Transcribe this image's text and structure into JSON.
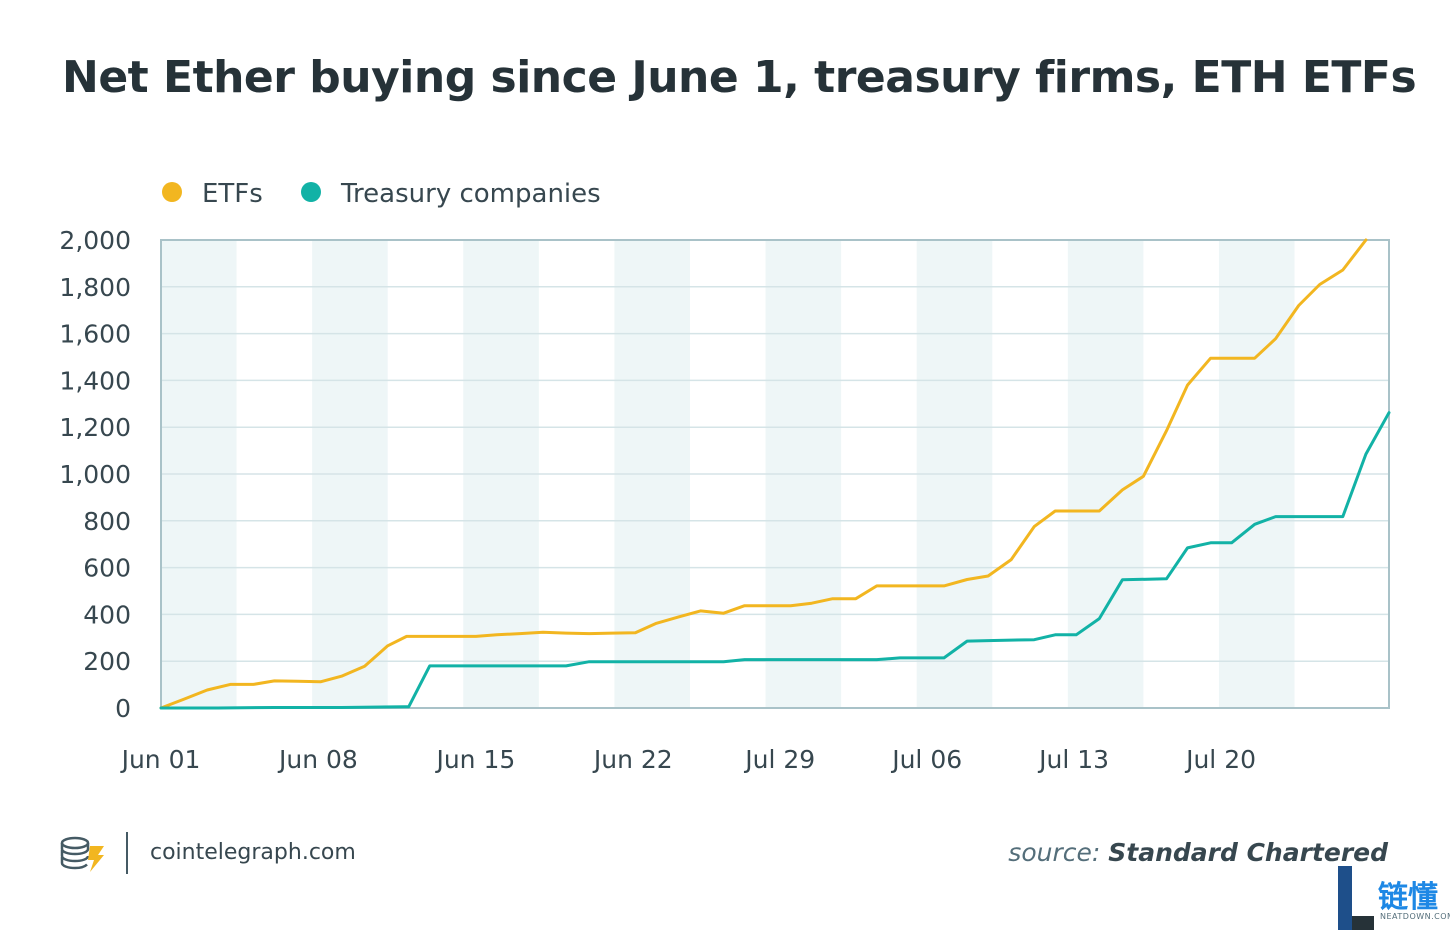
{
  "title": "Net Ether buying since June 1, treasury firms, ETH ETFs",
  "colors": {
    "etf": "#f2b620",
    "treasury": "#12b2a6",
    "band": "#eef6f7",
    "grid": "#d5e4e7",
    "axis": "#a9c2c8",
    "text": "#37474f"
  },
  "footer": {
    "site": "cointelegraph.com",
    "source_prefix": "source: ",
    "source_name": "Standard Chartered",
    "watermark": "链懂",
    "watermark_sub": "NEATDOWN.COM"
  },
  "chart_data": {
    "type": "line",
    "title": "Net Ether buying since June 1, treasury firms, ETH ETFs",
    "xlabel": "",
    "ylabel": "",
    "ylim": [
      0,
      2000
    ],
    "yticks": [
      0,
      200,
      400,
      600,
      800,
      1000,
      1200,
      1400,
      1600,
      1800,
      2000
    ],
    "ytick_labels": [
      "0",
      "200",
      "400",
      "600",
      "800",
      "1,000",
      "1,200",
      "1,400",
      "1,600",
      "1,800",
      "2,000"
    ],
    "xlim": [
      0,
      56
    ],
    "xticks": [
      {
        "x": 0,
        "label": "Jun 01"
      },
      {
        "x": 7.5,
        "label": "Jun 08"
      },
      {
        "x": 15,
        "label": "Jun 15"
      },
      {
        "x": 22.5,
        "label": "Jun 22"
      },
      {
        "x": 29.5,
        "label": "Jul 29"
      },
      {
        "x": 36.5,
        "label": "Jul 06"
      },
      {
        "x": 43.5,
        "label": "Jul 13"
      },
      {
        "x": 50.5,
        "label": "Jul 20"
      }
    ],
    "bands": [
      [
        0,
        3.6
      ],
      [
        7.2,
        10.8
      ],
      [
        14.4,
        18
      ],
      [
        21.6,
        25.2
      ],
      [
        28.8,
        32.4
      ],
      [
        36,
        39.6
      ],
      [
        43.2,
        46.8
      ],
      [
        50.4,
        54
      ]
    ],
    "grid": true,
    "legend": {
      "position": "top-left",
      "entries": [
        "ETFs",
        "Treasury companies"
      ]
    },
    "series": [
      {
        "name": "ETFs",
        "points": [
          [
            0,
            0
          ],
          [
            1.1,
            38
          ],
          [
            2.2,
            77
          ],
          [
            3.3,
            101
          ],
          [
            4.4,
            101
          ],
          [
            5.4,
            116
          ],
          [
            6.5,
            114
          ],
          [
            7.6,
            112
          ],
          [
            8.6,
            136
          ],
          [
            9.7,
            178
          ],
          [
            10.8,
            266
          ],
          [
            11.7,
            306
          ],
          [
            12.8,
            306
          ],
          [
            13.9,
            306
          ],
          [
            15,
            306
          ],
          [
            16,
            313
          ],
          [
            17.1,
            318
          ],
          [
            18.2,
            324
          ],
          [
            19.3,
            320
          ],
          [
            20.4,
            318
          ],
          [
            21.5,
            320
          ],
          [
            22.6,
            322
          ],
          [
            23.6,
            362
          ],
          [
            24.7,
            390
          ],
          [
            25.7,
            415
          ],
          [
            26.8,
            405
          ],
          [
            27.8,
            437
          ],
          [
            28.9,
            437
          ],
          [
            30,
            437
          ],
          [
            31,
            448
          ],
          [
            32,
            467
          ],
          [
            33.1,
            467
          ],
          [
            34.1,
            522
          ],
          [
            35.2,
            522
          ],
          [
            36.3,
            522
          ],
          [
            37.3,
            522
          ],
          [
            38.4,
            549
          ],
          [
            39.4,
            564
          ],
          [
            40.5,
            634
          ],
          [
            41.6,
            775
          ],
          [
            42.6,
            842
          ],
          [
            43.6,
            842
          ],
          [
            44.7,
            842
          ],
          [
            45.8,
            932
          ],
          [
            46.8,
            990
          ],
          [
            47.9,
            1185
          ],
          [
            48.9,
            1380
          ],
          [
            50,
            1495
          ],
          [
            51,
            1495
          ],
          [
            52.1,
            1495
          ],
          [
            53.1,
            1578
          ],
          [
            54.2,
            1720
          ],
          [
            55.2,
            1810
          ],
          [
            56.3,
            1872
          ],
          [
            57.4,
            2000
          ]
        ]
      },
      {
        "name": "Treasury companies",
        "points": [
          [
            0,
            0
          ],
          [
            2.7,
            0
          ],
          [
            5.4,
            2
          ],
          [
            8.6,
            2
          ],
          [
            11.6,
            5
          ],
          [
            11.8,
            5
          ],
          [
            12.8,
            180
          ],
          [
            15,
            180
          ],
          [
            17.1,
            180
          ],
          [
            19.3,
            180
          ],
          [
            20.4,
            198
          ],
          [
            21.5,
            198
          ],
          [
            23.6,
            198
          ],
          [
            25.7,
            198
          ],
          [
            26.8,
            198
          ],
          [
            27.8,
            207
          ],
          [
            30,
            207
          ],
          [
            32,
            207
          ],
          [
            33.1,
            207
          ],
          [
            34.1,
            207
          ],
          [
            35.2,
            214
          ],
          [
            37.3,
            214
          ],
          [
            38.4,
            286
          ],
          [
            39.4,
            288
          ],
          [
            40.5,
            290
          ],
          [
            41.6,
            292
          ],
          [
            42.6,
            313
          ],
          [
            43.6,
            313
          ],
          [
            44.7,
            382
          ],
          [
            45.8,
            548
          ],
          [
            47.9,
            552
          ],
          [
            48.9,
            684
          ],
          [
            50,
            706
          ],
          [
            51,
            706
          ],
          [
            52.1,
            785
          ],
          [
            53.1,
            818
          ],
          [
            54.2,
            818
          ],
          [
            55.2,
            818
          ],
          [
            56.3,
            818
          ],
          [
            57.4,
            1085
          ],
          [
            58.5,
            1262
          ]
        ]
      }
    ]
  }
}
